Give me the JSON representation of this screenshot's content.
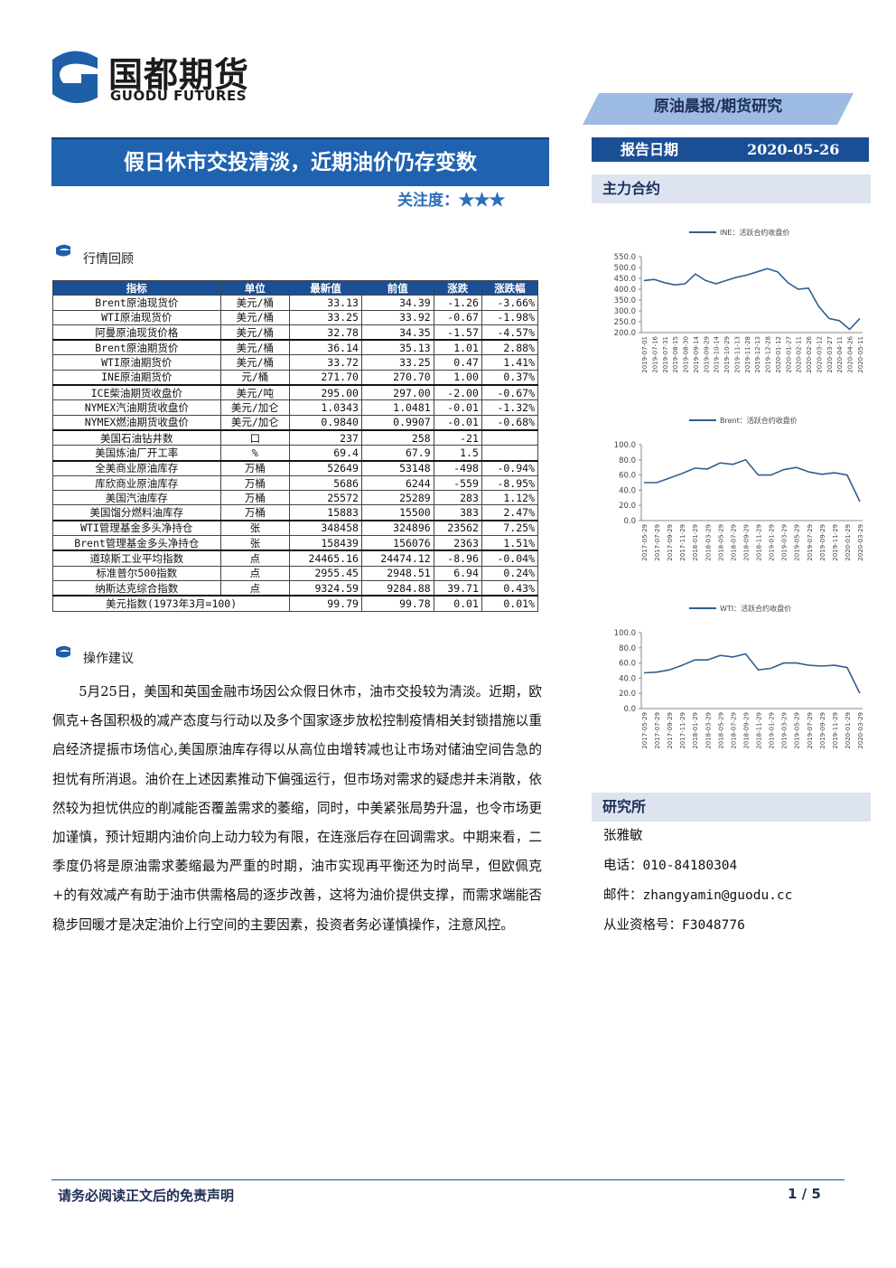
{
  "header": {
    "logo_cn": "国都期货",
    "logo_en": "GUODU FUTURES",
    "section": "原油晨报/期货研究",
    "report_date_label": "报告日期",
    "report_date": "2020-05-26"
  },
  "title": "假日休市交投清淡，近期油价仍存变数",
  "attention": "关注度：★★★",
  "market_review": {
    "heading": "行情回顾",
    "table": {
      "columns": [
        "指标",
        "单位",
        "最新值",
        "前值",
        "涨跌",
        "涨跌幅"
      ],
      "rows": [
        [
          "Brent原油现货价",
          "美元/桶",
          "33.13",
          "34.39",
          "-1.26",
          "-3.66%"
        ],
        [
          "WTI原油现货价",
          "美元/桶",
          "33.25",
          "33.92",
          "-0.67",
          "-1.98%"
        ],
        [
          "阿曼原油现货价格",
          "美元/桶",
          "32.78",
          "34.35",
          "-1.57",
          "-4.57%"
        ],
        [
          "Brent原油期货价",
          "美元/桶",
          "36.14",
          "35.13",
          "1.01",
          "2.88%"
        ],
        [
          "WTI原油期货价",
          "美元/桶",
          "33.72",
          "33.25",
          "0.47",
          "1.41%"
        ],
        [
          "INE原油期货价",
          "元/桶",
          "271.70",
          "270.70",
          "1.00",
          "0.37%"
        ],
        [
          "ICE柴油期货收盘价",
          "美元/吨",
          "295.00",
          "297.00",
          "-2.00",
          "-0.67%"
        ],
        [
          "NYMEX汽油期货收盘价",
          "美元/加仑",
          "1.0343",
          "1.0481",
          "-0.01",
          "-1.32%"
        ],
        [
          "NYMEX燃油期货收盘价",
          "美元/加仑",
          "0.9840",
          "0.9907",
          "-0.01",
          "-0.68%"
        ],
        [
          "美国石油钻井数",
          "口",
          "237",
          "258",
          "-21",
          null
        ],
        [
          "美国炼油厂开工率",
          "%",
          "69.4",
          "67.9",
          "1.5",
          null
        ],
        [
          "全美商业原油库存",
          "万桶",
          "52649",
          "53148",
          "-498",
          "-0.94%"
        ],
        [
          "库欣商业原油库存",
          "万桶",
          "5686",
          "6244",
          "-559",
          "-8.95%"
        ],
        [
          "美国汽油库存",
          "万桶",
          "25572",
          "25289",
          "283",
          "1.12%"
        ],
        [
          "美国馏分燃料油库存",
          "万桶",
          "15883",
          "15500",
          "383",
          "2.47%"
        ],
        [
          "WTI管理基金多头净持仓",
          "张",
          "348458",
          "324896",
          "23562",
          "7.25%"
        ],
        [
          "Brent管理基金多头净持仓",
          "张",
          "158439",
          "156076",
          "2363",
          "1.51%"
        ],
        [
          "道琼斯工业平均指数",
          "点",
          "24465.16",
          "24474.12",
          "-8.96",
          "-0.04%"
        ],
        [
          "标准普尔500指数",
          "点",
          "2955.45",
          "2948.51",
          "6.94",
          "0.24%"
        ],
        [
          "纳斯达克综合指数",
          "点",
          "9324.59",
          "9284.88",
          "39.71",
          "0.43%"
        ],
        [
          "美元指数(1973年3月=100)",
          null,
          "99.79",
          "99.78",
          "0.01",
          "0.01%"
        ]
      ]
    }
  },
  "advice": {
    "heading": "操作建议",
    "text": "5月25日，美国和英国金融市场因公众假日休市，油市交投较为清淡。近期，欧佩克+各国积极的减产态度与行动以及多个国家逐步放松控制疫情相关封锁措施以重启经济提振市场信心,美国原油库存得以从高位由增转减也让市场对储油空间告急的担忧有所消退。油价在上述因素推动下偏强运行，但市场对需求的疑虑并未消散，依然较为担忧供应的削减能否覆盖需求的萎缩，同时，中美紧张局势升温，也令市场更加谨慎，预计短期内油价向上动力较为有限，在连涨后存在回调需求。中期来看，二季度仍将是原油需求萎缩最为严重的时期，油市实现再平衡还为时尚早，但欧佩克+的有效减产有助于油市供需格局的逐步改善，这将为油价提供支撑，而需求端能否稳步回暖才是决定油价上行空间的主要因素，投资者务必谨慎操作，注意风控。"
  },
  "contracts_heading": "主力合约",
  "chart_data": [
    {
      "type": "line",
      "color": "#2f5f8f",
      "series_name": "INE：活跃合约收盘价",
      "categories": [
        "2019-07-01",
        "2019-07-16",
        "2019-07-31",
        "2019-08-15",
        "2019-08-30",
        "2019-09-14",
        "2019-09-29",
        "2019-10-14",
        "2019-10-29",
        "2019-11-13",
        "2019-11-28",
        "2019-12-13",
        "2019-12-28",
        "2020-01-12",
        "2020-01-27",
        "2020-02-11",
        "2020-02-26",
        "2020-03-12",
        "2020-03-27",
        "2020-04-11",
        "2020-04-26",
        "2020-05-11"
      ],
      "values": [
        440,
        445,
        430,
        420,
        425,
        470,
        440,
        425,
        440,
        455,
        465,
        480,
        495,
        480,
        430,
        400,
        405,
        320,
        265,
        255,
        215,
        265
      ],
      "ylim": [
        200,
        550
      ],
      "yticks": [
        {
          "value": 200,
          "label": "200.0"
        },
        {
          "value": 250,
          "label": "250.0"
        },
        {
          "value": 300,
          "label": "300.0"
        },
        {
          "value": 350,
          "label": "350.0"
        },
        {
          "value": 400,
          "label": "400.0"
        },
        {
          "value": 450,
          "label": "450.0"
        },
        {
          "value": 500,
          "label": "500.0"
        },
        {
          "value": 550,
          "label": "550.0"
        }
      ]
    },
    {
      "type": "line",
      "color": "#2f5f8f",
      "series_name": "Brent：活跃合约收盘价",
      "categories": [
        "2017-05-29",
        "2017-07-29",
        "2017-09-29",
        "2017-11-29",
        "2018-01-29",
        "2018-03-29",
        "2018-05-29",
        "2018-07-29",
        "2018-09-29",
        "2018-11-29",
        "2019-01-29",
        "2019-03-29",
        "2019-05-29",
        "2019-07-29",
        "2019-09-29",
        "2019-11-29",
        "2020-01-29",
        "2020-03-29"
      ],
      "values": [
        50,
        50,
        56,
        62,
        69,
        68,
        76,
        74,
        80,
        60,
        60,
        67,
        70,
        64,
        61,
        63,
        60,
        25
      ],
      "ylim": [
        0,
        100
      ],
      "yticks": [
        {
          "value": 0,
          "label": "0.0"
        },
        {
          "value": 20,
          "label": "20.0"
        },
        {
          "value": 40,
          "label": "40.0"
        },
        {
          "value": 60,
          "label": "60.0"
        },
        {
          "value": 80,
          "label": "80.0"
        },
        {
          "value": 100,
          "label": "100.0"
        }
      ]
    },
    {
      "type": "line",
      "color": "#2f5f8f",
      "series_name": "WTI：活跃合约收盘价",
      "categories": [
        "2017-05-29",
        "2017-07-29",
        "2017-09-29",
        "2017-11-29",
        "2018-01-29",
        "2018-03-29",
        "2018-05-29",
        "2018-07-29",
        "2018-09-29",
        "2018-11-29",
        "2019-01-29",
        "2019-03-29",
        "2019-05-29",
        "2019-07-29",
        "2019-09-29",
        "2019-11-29",
        "2020-01-29",
        "2020-03-29"
      ],
      "values": [
        47,
        48,
        51,
        57,
        64,
        64,
        70,
        68,
        72,
        51,
        53,
        60,
        60,
        57,
        56,
        57,
        54,
        20
      ],
      "ylim": [
        0,
        100
      ],
      "yticks": [
        {
          "value": 0,
          "label": "0.0"
        },
        {
          "value": 20,
          "label": "20.0"
        },
        {
          "value": 40,
          "label": "40.0"
        },
        {
          "value": 60,
          "label": "60.0"
        },
        {
          "value": 80,
          "label": "80.0"
        },
        {
          "value": 100,
          "label": "100.0"
        }
      ]
    }
  ],
  "institute": {
    "heading": "研究所",
    "name": "张雅敏",
    "phone": "电话：010-84180304",
    "email": "邮件：zhangyamin@guodu.cc",
    "license": "从业资格号：F3048776"
  },
  "footer": {
    "disclaimer": "请务必阅读正文后的免责声明",
    "page": "1 / 5"
  }
}
